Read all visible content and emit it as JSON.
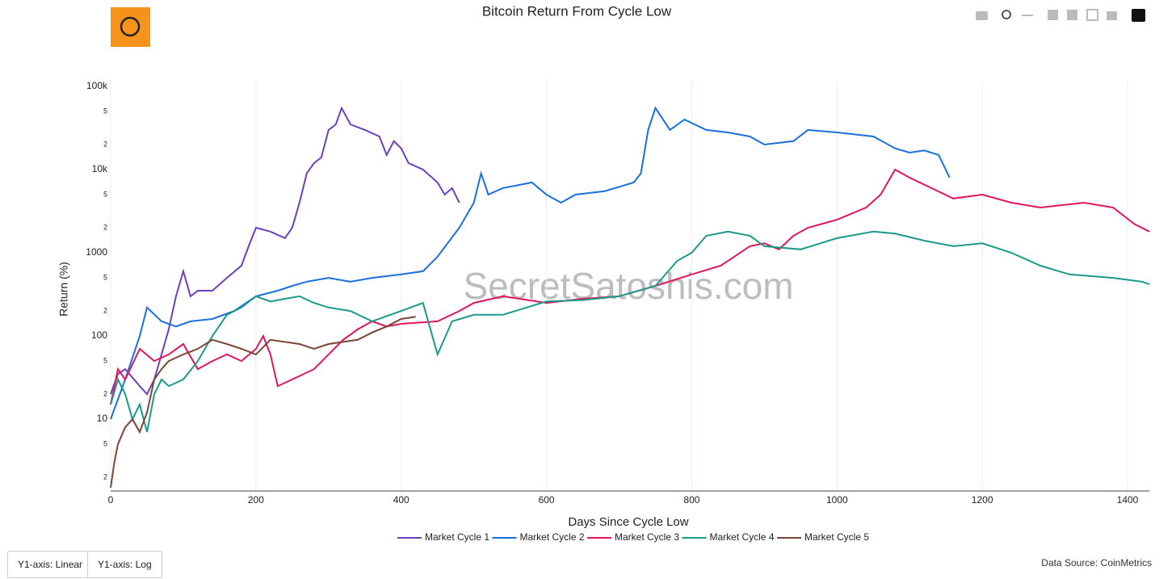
{
  "chart_data": {
    "type": "line",
    "title": "Bitcoin Return From Cycle Low",
    "x_label": "Days Since Cycle Low",
    "y_label": "Return (%)",
    "watermark": "SecretSatoshis.com",
    "source": "Data Source: CoinMetrics",
    "buttons": [
      "Y1-axis: Linear",
      "Y1-axis: Log"
    ],
    "log_y": true,
    "grid_x": true,
    "xlim": [
      0,
      1430
    ],
    "ylim": [
      1.37,
      117000
    ],
    "xticks": [
      0,
      200,
      400,
      600,
      800,
      1000,
      1200,
      1400
    ],
    "yticks": [
      {
        "value": 2,
        "label": "2"
      },
      {
        "value": 5,
        "label": "5"
      },
      10,
      {
        "value": 20,
        "label": "2"
      },
      {
        "value": 50,
        "label": "5"
      },
      100,
      {
        "value": 200,
        "label": "2"
      },
      {
        "value": 500,
        "label": "5"
      },
      1000,
      {
        "value": 2000,
        "label": "2"
      },
      {
        "value": 5000,
        "label": "5"
      },
      {
        "value": 10000,
        "label": "10k"
      },
      {
        "value": 20000,
        "label": "2"
      },
      {
        "value": 50000,
        "label": "5"
      },
      {
        "value": 100000,
        "label": "100k"
      }
    ],
    "series": [
      {
        "name": "Market Cycle 1",
        "color": "#6a3fc0",
        "x": [
          0,
          10,
          20,
          40,
          50,
          60,
          70,
          80,
          90,
          100,
          110,
          120,
          140,
          160,
          180,
          190,
          200,
          220,
          240,
          250,
          260,
          270,
          280,
          290,
          300,
          310,
          318,
          330,
          350,
          370,
          380,
          390,
          400,
          410,
          430,
          450,
          460,
          470,
          480
        ],
        "values": [
          20,
          35,
          40,
          25,
          20,
          30,
          60,
          120,
          300,
          600,
          300,
          350,
          350,
          500,
          700,
          1200,
          2000,
          1800,
          1500,
          2000,
          4000,
          9000,
          12000,
          14000,
          30000,
          35000,
          55000,
          35000,
          30000,
          25000,
          15000,
          22000,
          18000,
          12000,
          10000,
          7000,
          5000,
          6000,
          4000
        ]
      },
      {
        "name": "Market Cycle 2",
        "color": "#1a6fdf",
        "x": [
          0,
          20,
          40,
          50,
          70,
          90,
          110,
          140,
          170,
          200,
          230,
          250,
          270,
          300,
          330,
          360,
          400,
          430,
          450,
          480,
          500,
          510,
          520,
          540,
          580,
          600,
          620,
          640,
          680,
          720,
          730,
          740,
          750,
          770,
          790,
          820,
          850,
          880,
          900,
          940,
          960,
          1000,
          1050,
          1080,
          1100,
          1120,
          1140,
          1155
        ],
        "values": [
          10,
          30,
          100,
          220,
          150,
          130,
          150,
          160,
          200,
          300,
          350,
          400,
          450,
          500,
          450,
          500,
          550,
          600,
          900,
          2000,
          4000,
          9000,
          5000,
          6000,
          7000,
          5000,
          4000,
          5000,
          5500,
          7000,
          9000,
          30000,
          55000,
          30000,
          40000,
          30000,
          28000,
          25000,
          20000,
          22000,
          30000,
          28000,
          25000,
          18000,
          16000,
          17000,
          15000,
          8000
        ]
      },
      {
        "name": "Market Cycle 3",
        "color": "#e3165b",
        "x": [
          0,
          10,
          20,
          40,
          60,
          80,
          100,
          120,
          140,
          160,
          180,
          200,
          210,
          220,
          230,
          250,
          280,
          300,
          320,
          340,
          360,
          380,
          400,
          450,
          480,
          500,
          540,
          600,
          650,
          700,
          750,
          800,
          840,
          880,
          900,
          920,
          940,
          960,
          1000,
          1040,
          1060,
          1080,
          1100,
          1130,
          1160,
          1200,
          1240,
          1280,
          1340,
          1380,
          1410,
          1430
        ],
        "values": [
          15,
          40,
          30,
          70,
          50,
          60,
          80,
          40,
          50,
          60,
          50,
          70,
          100,
          60,
          25,
          30,
          40,
          60,
          90,
          120,
          150,
          130,
          140,
          150,
          200,
          250,
          300,
          250,
          280,
          300,
          400,
          550,
          700,
          1200,
          1300,
          1100,
          1600,
          2000,
          2500,
          3500,
          5000,
          10000,
          8000,
          6000,
          4500,
          5000,
          4000,
          3500,
          4000,
          3500,
          2200,
          1800
        ]
      },
      {
        "name": "Market Cycle 4",
        "color": "#1a9a8a",
        "x": [
          0,
          10,
          20,
          30,
          40,
          50,
          60,
          70,
          80,
          100,
          120,
          140,
          160,
          180,
          200,
          220,
          240,
          260,
          280,
          300,
          330,
          360,
          400,
          430,
          450,
          470,
          500,
          540,
          600,
          650,
          700,
          750,
          780,
          800,
          820,
          850,
          880,
          900,
          950,
          1000,
          1050,
          1080,
          1120,
          1160,
          1200,
          1240,
          1280,
          1320,
          1380,
          1420,
          1430
        ],
        "values": [
          15,
          30,
          20,
          10,
          15,
          7,
          20,
          30,
          25,
          30,
          50,
          100,
          180,
          220,
          300,
          260,
          280,
          300,
          250,
          220,
          200,
          150,
          200,
          250,
          60,
          150,
          180,
          180,
          260,
          270,
          300,
          400,
          800,
          1000,
          1600,
          1800,
          1600,
          1200,
          1100,
          1500,
          1800,
          1700,
          1400,
          1200,
          1300,
          1000,
          700,
          550,
          500,
          450,
          420
        ]
      },
      {
        "name": "Market Cycle 5",
        "color": "#7a4636",
        "x": [
          0,
          5,
          10,
          20,
          30,
          40,
          50,
          60,
          70,
          80,
          100,
          120,
          140,
          160,
          180,
          200,
          220,
          260,
          280,
          300,
          340,
          360,
          380,
          400,
          420
        ],
        "values": [
          1.5,
          3,
          5,
          8,
          10,
          7,
          12,
          30,
          40,
          50,
          60,
          70,
          90,
          80,
          70,
          60,
          90,
          80,
          70,
          80,
          90,
          110,
          130,
          160,
          170
        ]
      }
    ]
  }
}
